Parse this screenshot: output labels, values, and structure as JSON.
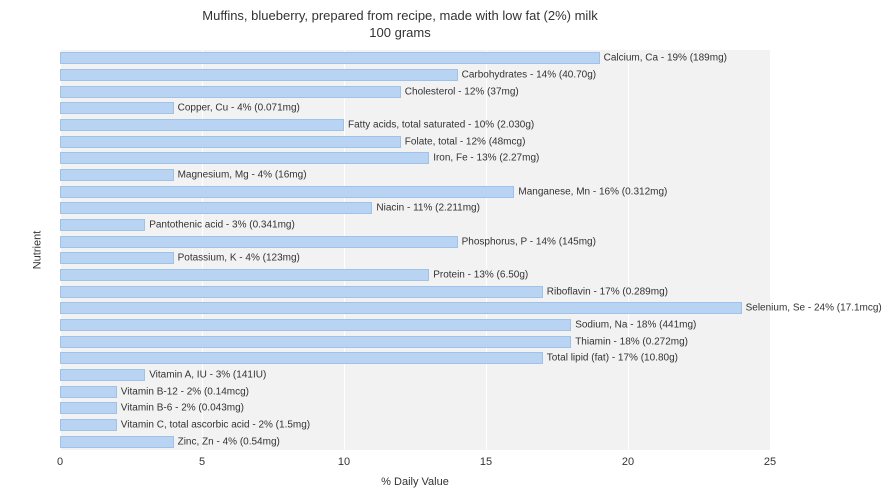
{
  "chart": {
    "type": "bar",
    "title_line1": "Muffins, blueberry, prepared from recipe, made with low fat (2%) milk",
    "title_line2": "100 grams",
    "title_fontsize": 13,
    "xlabel": "% Daily Value",
    "ylabel": "Nutrient",
    "label_fontsize": 11,
    "xlim": [
      0,
      25
    ],
    "xtick_step": 5,
    "xticks": [
      0,
      5,
      10,
      15,
      20,
      25
    ],
    "background_color": "#ffffff",
    "plot_background_color": "#f2f2f2",
    "grid_color": "#ffffff",
    "bar_color": "#b9d4f2",
    "bar_border_color": "#9fc2e8",
    "text_color": "#333333",
    "bar_label_fontsize": 10,
    "nutrients": [
      {
        "label": "Calcium, Ca - 19% (189mg)",
        "value": 19
      },
      {
        "label": "Carbohydrates - 14% (40.70g)",
        "value": 14
      },
      {
        "label": "Cholesterol - 12% (37mg)",
        "value": 12
      },
      {
        "label": "Copper, Cu - 4% (0.071mg)",
        "value": 4
      },
      {
        "label": "Fatty acids, total saturated - 10% (2.030g)",
        "value": 10
      },
      {
        "label": "Folate, total - 12% (48mcg)",
        "value": 12
      },
      {
        "label": "Iron, Fe - 13% (2.27mg)",
        "value": 13
      },
      {
        "label": "Magnesium, Mg - 4% (16mg)",
        "value": 4
      },
      {
        "label": "Manganese, Mn - 16% (0.312mg)",
        "value": 16
      },
      {
        "label": "Niacin - 11% (2.211mg)",
        "value": 11
      },
      {
        "label": "Pantothenic acid - 3% (0.341mg)",
        "value": 3
      },
      {
        "label": "Phosphorus, P - 14% (145mg)",
        "value": 14
      },
      {
        "label": "Potassium, K - 4% (123mg)",
        "value": 4
      },
      {
        "label": "Protein - 13% (6.50g)",
        "value": 13
      },
      {
        "label": "Riboflavin - 17% (0.289mg)",
        "value": 17
      },
      {
        "label": "Selenium, Se - 24% (17.1mcg)",
        "value": 24
      },
      {
        "label": "Sodium, Na - 18% (441mg)",
        "value": 18
      },
      {
        "label": "Thiamin - 18% (0.272mg)",
        "value": 18
      },
      {
        "label": "Total lipid (fat) - 17% (10.80g)",
        "value": 17
      },
      {
        "label": "Vitamin A, IU - 3% (141IU)",
        "value": 3
      },
      {
        "label": "Vitamin B-12 - 2% (0.14mcg)",
        "value": 2
      },
      {
        "label": "Vitamin B-6 - 2% (0.043mg)",
        "value": 2
      },
      {
        "label": "Vitamin C, total ascorbic acid - 2% (1.5mg)",
        "value": 2
      },
      {
        "label": "Zinc, Zn - 4% (0.54mg)",
        "value": 4
      }
    ]
  }
}
